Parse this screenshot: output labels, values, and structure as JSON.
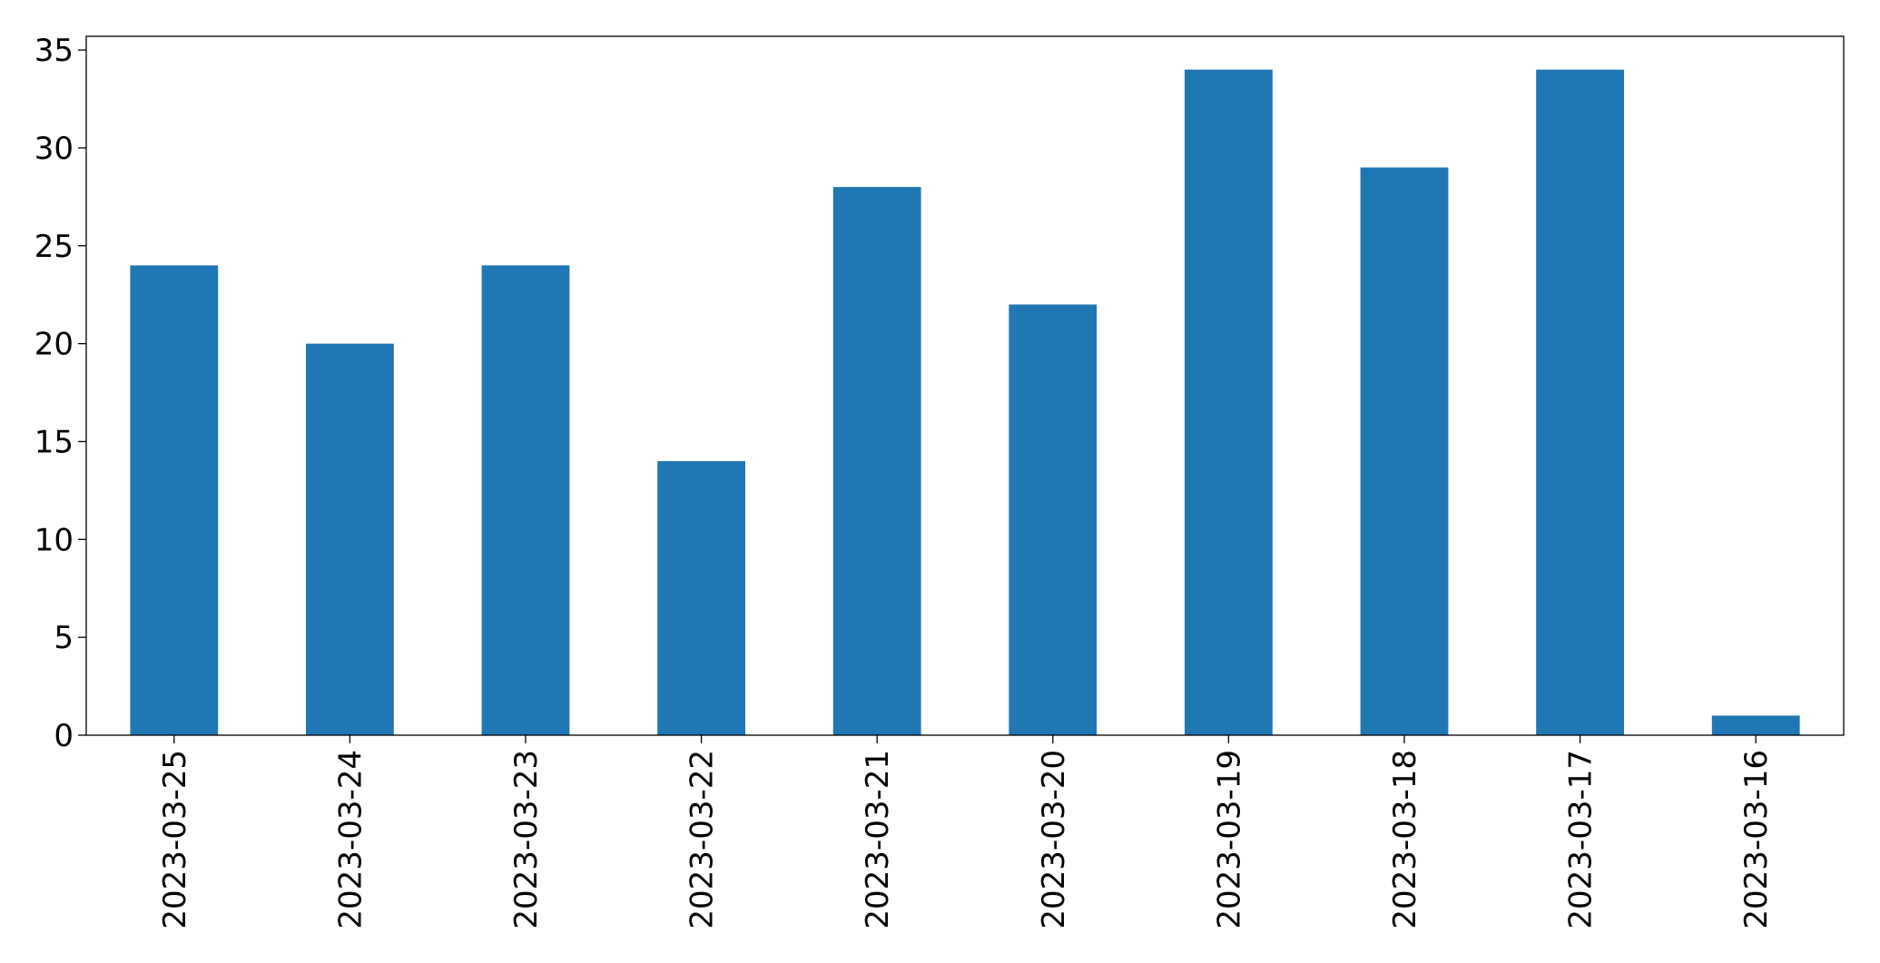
{
  "chart_data": {
    "type": "bar",
    "categories": [
      "2023-03-25",
      "2023-03-24",
      "2023-03-23",
      "2023-03-22",
      "2023-03-21",
      "2023-03-20",
      "2023-03-19",
      "2023-03-18",
      "2023-03-17",
      "2023-03-16"
    ],
    "values": [
      24,
      20,
      24,
      14,
      28,
      22,
      34,
      29,
      34,
      1
    ],
    "color": "#1f77b4",
    "ylim": [
      0,
      35.7
    ],
    "yticks": [
      0,
      5,
      10,
      15,
      20,
      25,
      30,
      35
    ],
    "grid": false
  }
}
